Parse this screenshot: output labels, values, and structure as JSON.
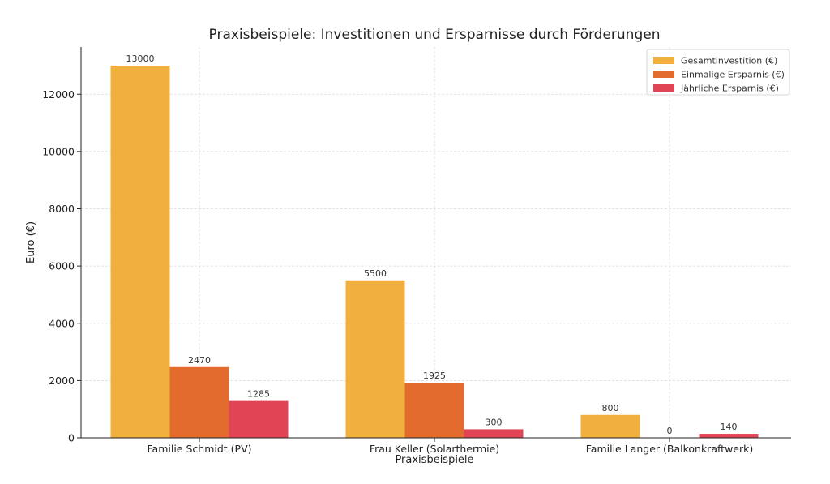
{
  "chart_data": {
    "type": "bar",
    "title": "Praxisbeispiele: Investitionen und Ersparnisse durch Förderungen",
    "xlabel": "Praxisbeispiele",
    "ylabel": "Euro (€)",
    "categories": [
      "Familie Schmidt (PV)",
      "Frau Keller (Solarthermie)",
      "Familie Langer (Balkonkraftwerk)"
    ],
    "series": [
      {
        "name": "Gesamtinvestition (€)",
        "color": "#f1b03d",
        "values": [
          13000,
          5500,
          800
        ],
        "labels": [
          "13000",
          "5500",
          "800"
        ]
      },
      {
        "name": "Einmalige Ersparnis (€)",
        "color": "#e36b2e",
        "values": [
          2470,
          1925,
          0
        ],
        "labels": [
          "2470",
          "1925",
          "0"
        ]
      },
      {
        "name": "Jährliche Ersparnis (€)",
        "color": "#e04555",
        "values": [
          1285,
          300,
          140
        ],
        "labels": [
          "1285",
          "300",
          "140"
        ]
      }
    ],
    "ylim": [
      0,
      13650
    ],
    "yticks": [
      0,
      2000,
      4000,
      6000,
      8000,
      10000,
      12000
    ],
    "ytick_labels": [
      "0",
      "2000",
      "4000",
      "6000",
      "8000",
      "10000",
      "12000"
    ],
    "grid": true,
    "legend_position": "top-right"
  }
}
